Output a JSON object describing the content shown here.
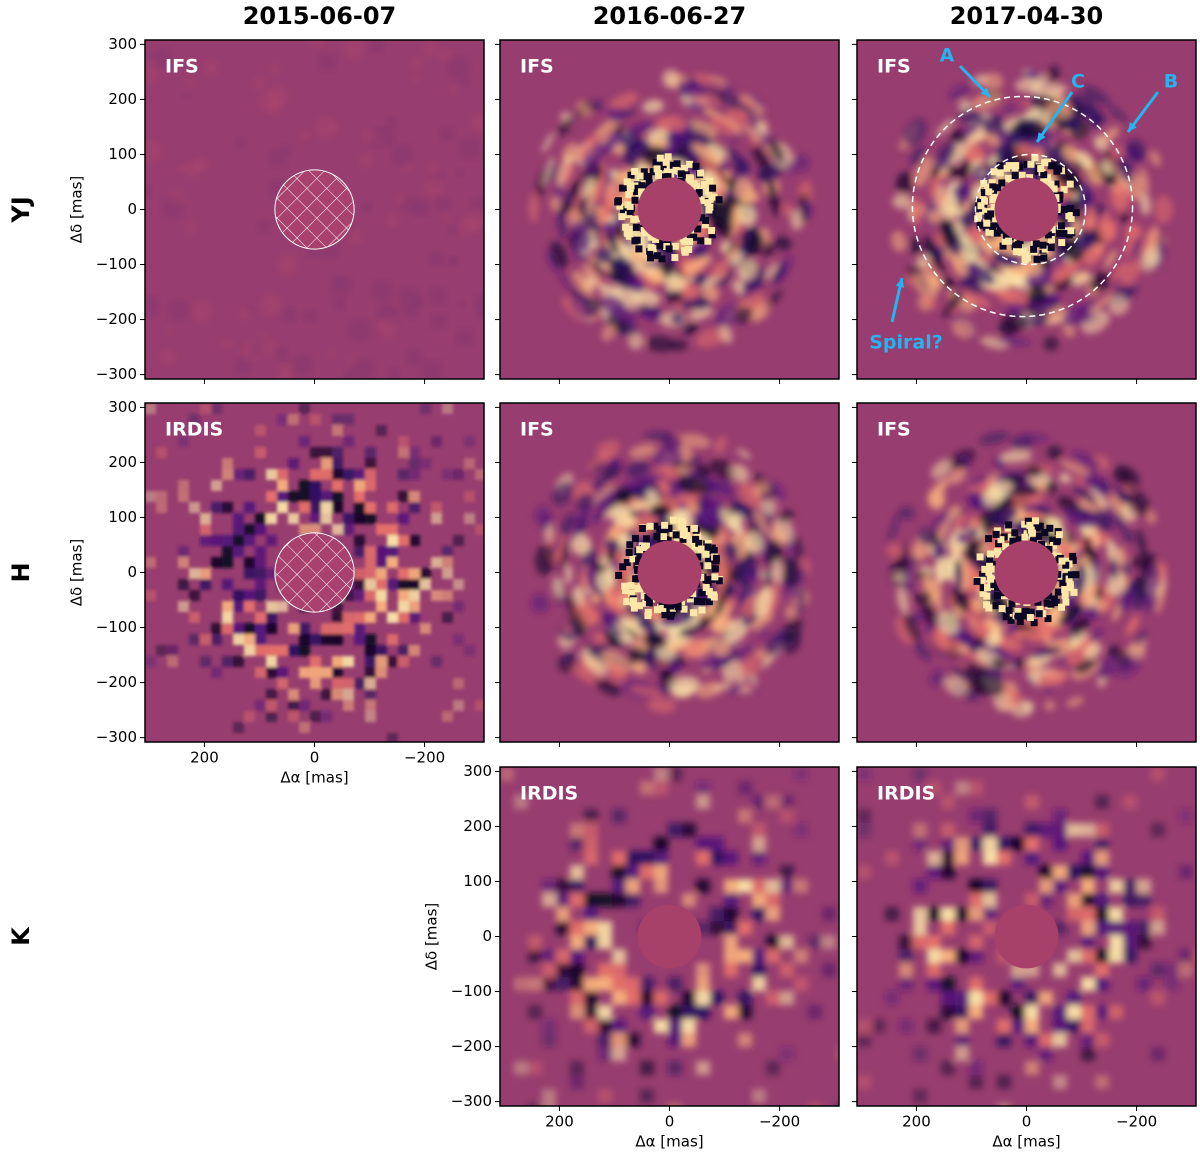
{
  "chart_data": {
    "type": "image_grid",
    "column_titles": [
      "2015-06-07",
      "2016-06-27",
      "2017-04-30"
    ],
    "rows": [
      {
        "name": "YJ",
        "panels": [
          {
            "label": "IFS",
            "hatched": true
          },
          {
            "label": "IFS",
            "hatched": false
          },
          {
            "label": "IFS",
            "hatched": false
          }
        ]
      },
      {
        "name": "H",
        "panels": [
          {
            "label": "IRDIS",
            "hatched": true
          },
          {
            "label": "IFS",
            "hatched": false
          },
          {
            "label": "IFS",
            "hatched": false
          }
        ]
      },
      {
        "name": "K",
        "panels": [
          null,
          {
            "label": "IRDIS",
            "hatched": false
          },
          {
            "label": "IRDIS",
            "hatched": false
          }
        ]
      }
    ],
    "xlabel": "Δα [mas]",
    "ylabel": "Δδ [mas]",
    "xlim": [
      308,
      -308
    ],
    "ylim": [
      -308,
      308
    ],
    "xticks": [
      {
        "value": 200,
        "label": "200"
      },
      0,
      {
        "value": -200,
        "label": "−200"
      }
    ],
    "yticks": [
      {
        "value": 300,
        "label": "300"
      },
      {
        "value": 200,
        "label": "200"
      },
      {
        "value": 100,
        "label": "100"
      },
      0,
      {
        "value": -100,
        "label": "−100"
      },
      {
        "value": -200,
        "label": "−200"
      },
      {
        "value": -300,
        "label": "−300"
      }
    ],
    "ring_radii": [
      200,
      100
    ],
    "annotations": [
      "A",
      "B",
      "C",
      "Spiral?"
    ],
    "annotation_color": "#27b3ee"
  }
}
